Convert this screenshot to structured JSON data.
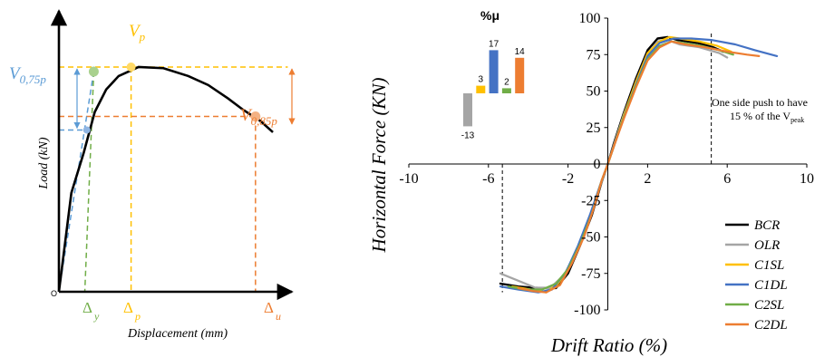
{
  "chart_data": [
    {
      "type": "line",
      "panel": "left",
      "xlabel": "Displacement (mm)",
      "ylabel": "Load (kN)",
      "origin_label": "O",
      "grid": false,
      "series": [
        {
          "values": [
            [
              0,
              0
            ],
            [
              2.5,
              44
            ],
            [
              5,
              62
            ],
            [
              7.2,
              80
            ],
            [
              9.5,
              90
            ],
            [
              12,
              96
            ],
            [
              16,
              100
            ],
            [
              21,
              99.5
            ],
            [
              26,
              96
            ],
            [
              30,
              92
            ],
            [
              34,
              86
            ],
            [
              37,
              81
            ],
            [
              40.5,
              76
            ],
            [
              43,
              71
            ]
          ]
        }
      ],
      "markers": {
        "v075": {
          "x": 5.6,
          "y": 72
        },
        "vy": {
          "x": 7,
          "y": 98
        },
        "vpeak": {
          "x": 14.5,
          "y": 100
        },
        "vult": {
          "x": 39.5,
          "y": 78
        }
      },
      "annotations": {
        "v075": {
          "label": "V",
          "sub": "0,75p",
          "color": "#5b9bd5"
        },
        "vp": {
          "label": "V",
          "sub": "p",
          "color": "#ffc000"
        },
        "v085": {
          "label": "V",
          "sub": "0,85p",
          "color": "#ed7d31"
        },
        "dy": {
          "label": "Δ",
          "sub": "y",
          "color": "#70ad47"
        },
        "dp": {
          "label": "Δ",
          "sub": "p",
          "color": "#ffc000"
        },
        "du": {
          "label": "Δ",
          "sub": "u",
          "color": "#ed7d31"
        }
      },
      "ylim": [
        0,
        125
      ],
      "xlim": [
        0,
        47
      ]
    },
    {
      "type": "line",
      "panel": "main",
      "xlabel": "Drift Ratio (%)",
      "ylabel": "Horizontal Force (KN)",
      "xlim": [
        -10,
        10
      ],
      "ylim": [
        -100,
        100
      ],
      "xticks": [
        -10,
        -6,
        -2,
        2,
        6,
        10
      ],
      "yticks": [
        -100,
        -75,
        -50,
        -25,
        0,
        25,
        50,
        75,
        100
      ],
      "grid": false,
      "legend_position": "right",
      "annotation": {
        "line1": "One side push to have",
        "line2_pre": "15 % of the V",
        "line2_sub": "peak"
      },
      "dashed_x": [
        -5.3,
        5.2
      ],
      "series": [
        {
          "name": "BCR",
          "color": "#000000",
          "width": 2.4,
          "points": [
            [
              -5.4,
              -82
            ],
            [
              -4.5,
              -84
            ],
            [
              -3.5,
              -85
            ],
            [
              -2.6,
              -85
            ],
            [
              -2.0,
              -75
            ],
            [
              -1.4,
              -56
            ],
            [
              -0.8,
              -35
            ],
            [
              -0.3,
              -12
            ],
            [
              0,
              0
            ],
            [
              0.3,
              14
            ],
            [
              0.8,
              35
            ],
            [
              1.4,
              58
            ],
            [
              2.0,
              78
            ],
            [
              2.5,
              86
            ],
            [
              3.0,
              87
            ],
            [
              3.5,
              85
            ],
            [
              4.5,
              83
            ],
            [
              5.3,
              80
            ],
            [
              5.8,
              77
            ]
          ]
        },
        {
          "name": "OLR",
          "color": "#a5a5a5",
          "width": 2.2,
          "points": [
            [
              -5.4,
              -75
            ],
            [
              -4.5,
              -80
            ],
            [
              -3.6,
              -85
            ],
            [
              -2.9,
              -85
            ],
            [
              -2.2,
              -76
            ],
            [
              -1.5,
              -58
            ],
            [
              -0.9,
              -36
            ],
            [
              -0.3,
              -12
            ],
            [
              0,
              0
            ],
            [
              0.3,
              13
            ],
            [
              0.8,
              34
            ],
            [
              1.4,
              55
            ],
            [
              2.0,
              75
            ],
            [
              2.5,
              84
            ],
            [
              3.0,
              85
            ],
            [
              3.6,
              82
            ],
            [
              4.6,
              80
            ],
            [
              5.6,
              76
            ],
            [
              6.0,
              73
            ]
          ]
        },
        {
          "name": "C1SL",
          "color": "#ffc000",
          "width": 2.2,
          "points": [
            [
              -4.8,
              -84
            ],
            [
              -3.9,
              -86
            ],
            [
              -3.1,
              -88
            ],
            [
              -2.5,
              -82
            ],
            [
              -1.9,
              -70
            ],
            [
              -1.3,
              -52
            ],
            [
              -0.8,
              -32
            ],
            [
              -0.3,
              -11
            ],
            [
              0,
              0
            ],
            [
              0.3,
              12
            ],
            [
              0.8,
              33
            ],
            [
              1.4,
              56
            ],
            [
              2.0,
              76
            ],
            [
              2.6,
              84
            ],
            [
              3.1,
              87
            ],
            [
              3.6,
              86
            ],
            [
              4.6,
              84
            ],
            [
              5.5,
              81
            ],
            [
              6.2,
              77
            ]
          ]
        },
        {
          "name": "C1DL",
          "color": "#4472c4",
          "width": 2.2,
          "points": [
            [
              -5.4,
              -84
            ],
            [
              -4.5,
              -86
            ],
            [
              -3.5,
              -88
            ],
            [
              -2.8,
              -86
            ],
            [
              -2.1,
              -74
            ],
            [
              -1.5,
              -56
            ],
            [
              -0.9,
              -35
            ],
            [
              -0.3,
              -11
            ],
            [
              0,
              0
            ],
            [
              0.3,
              12
            ],
            [
              0.8,
              32
            ],
            [
              1.4,
              54
            ],
            [
              2.0,
              74
            ],
            [
              2.6,
              83
            ],
            [
              3.3,
              86
            ],
            [
              4.2,
              86
            ],
            [
              5.2,
              85
            ],
            [
              6.4,
              82
            ],
            [
              7.4,
              78
            ],
            [
              8.5,
              74
            ]
          ]
        },
        {
          "name": "C2SL",
          "color": "#70ad47",
          "width": 2.2,
          "points": [
            [
              -5.0,
              -84
            ],
            [
              -4.2,
              -86
            ],
            [
              -3.3,
              -86
            ],
            [
              -2.6,
              -82
            ],
            [
              -2.0,
              -72
            ],
            [
              -1.4,
              -55
            ],
            [
              -0.8,
              -34
            ],
            [
              -0.3,
              -11
            ],
            [
              0,
              0
            ],
            [
              0.3,
              12
            ],
            [
              0.8,
              32
            ],
            [
              1.4,
              53
            ],
            [
              2.0,
              72
            ],
            [
              2.6,
              81
            ],
            [
              3.2,
              84
            ],
            [
              3.8,
              83
            ],
            [
              4.7,
              81
            ],
            [
              5.6,
              78
            ],
            [
              6.3,
              75
            ]
          ]
        },
        {
          "name": "C2DL",
          "color": "#ed7d31",
          "width": 2.2,
          "points": [
            [
              -4.5,
              -85
            ],
            [
              -3.8,
              -87
            ],
            [
              -3.1,
              -88
            ],
            [
              -2.4,
              -83
            ],
            [
              -1.8,
              -68
            ],
            [
              -1.2,
              -50
            ],
            [
              -0.7,
              -30
            ],
            [
              -0.3,
              -11
            ],
            [
              0,
              0
            ],
            [
              0.3,
              12
            ],
            [
              0.8,
              31
            ],
            [
              1.4,
              52
            ],
            [
              2.0,
              71
            ],
            [
              2.6,
              80
            ],
            [
              3.2,
              84
            ],
            [
              3.9,
              82
            ],
            [
              4.9,
              80
            ],
            [
              6.0,
              77
            ],
            [
              7.0,
              75
            ],
            [
              7.6,
              74
            ]
          ]
        }
      ]
    },
    {
      "type": "bar",
      "panel": "inset",
      "title": "%μ",
      "ylim": [
        -13,
        17
      ],
      "bars": [
        {
          "value": -13,
          "label": "-13",
          "color": "#a5a5a5"
        },
        {
          "value": 3,
          "label": "3",
          "color": "#ffc000"
        },
        {
          "value": 17,
          "label": "17",
          "color": "#4472c4"
        },
        {
          "value": 2,
          "label": "2",
          "color": "#70ad47"
        },
        {
          "value": 14,
          "label": "14",
          "color": "#ed7d31"
        }
      ]
    }
  ]
}
